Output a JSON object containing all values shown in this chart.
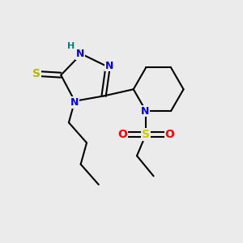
{
  "bg_color": "#ebebeb",
  "atom_colors": {
    "N": "#0000ff",
    "S_thiol": "#b8b800",
    "S_sulfonyl": "#cccc00",
    "O": "#ff0000",
    "C": "#000000",
    "H": "#008080"
  },
  "bond_color": "#000000",
  "lw": 1.5
}
